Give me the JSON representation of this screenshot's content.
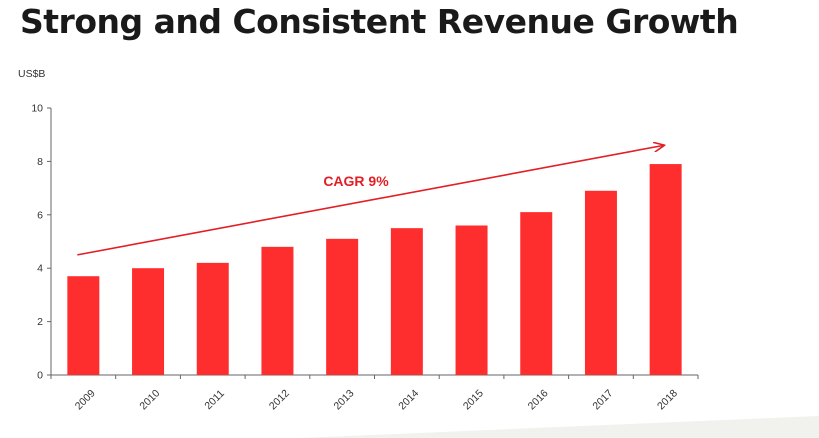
{
  "title": "Strong and Consistent Revenue Growth",
  "colors": {
    "bar": "#ff2e2e",
    "axis": "#666666",
    "annotation": "#e31e24",
    "title": "#1a1a1a"
  },
  "chart_data": {
    "type": "bar",
    "title": "",
    "ylabel": "US$B",
    "xlabel": "",
    "ylim": [
      0,
      10
    ],
    "yticks": [
      0,
      2,
      4,
      6,
      8,
      10
    ],
    "categories": [
      "2009",
      "2010",
      "2011",
      "2012",
      "2013",
      "2014",
      "2015",
      "2016",
      "2017",
      "2018"
    ],
    "values": [
      3.7,
      4.0,
      4.2,
      4.8,
      5.1,
      5.5,
      5.6,
      6.1,
      6.9,
      7.9
    ],
    "grid": false,
    "annotation": {
      "text": "CAGR 9%",
      "type": "trend-arrow",
      "from_category": "2009",
      "to_category": "2018",
      "from_value": 4.5,
      "to_value": 8.6
    }
  }
}
